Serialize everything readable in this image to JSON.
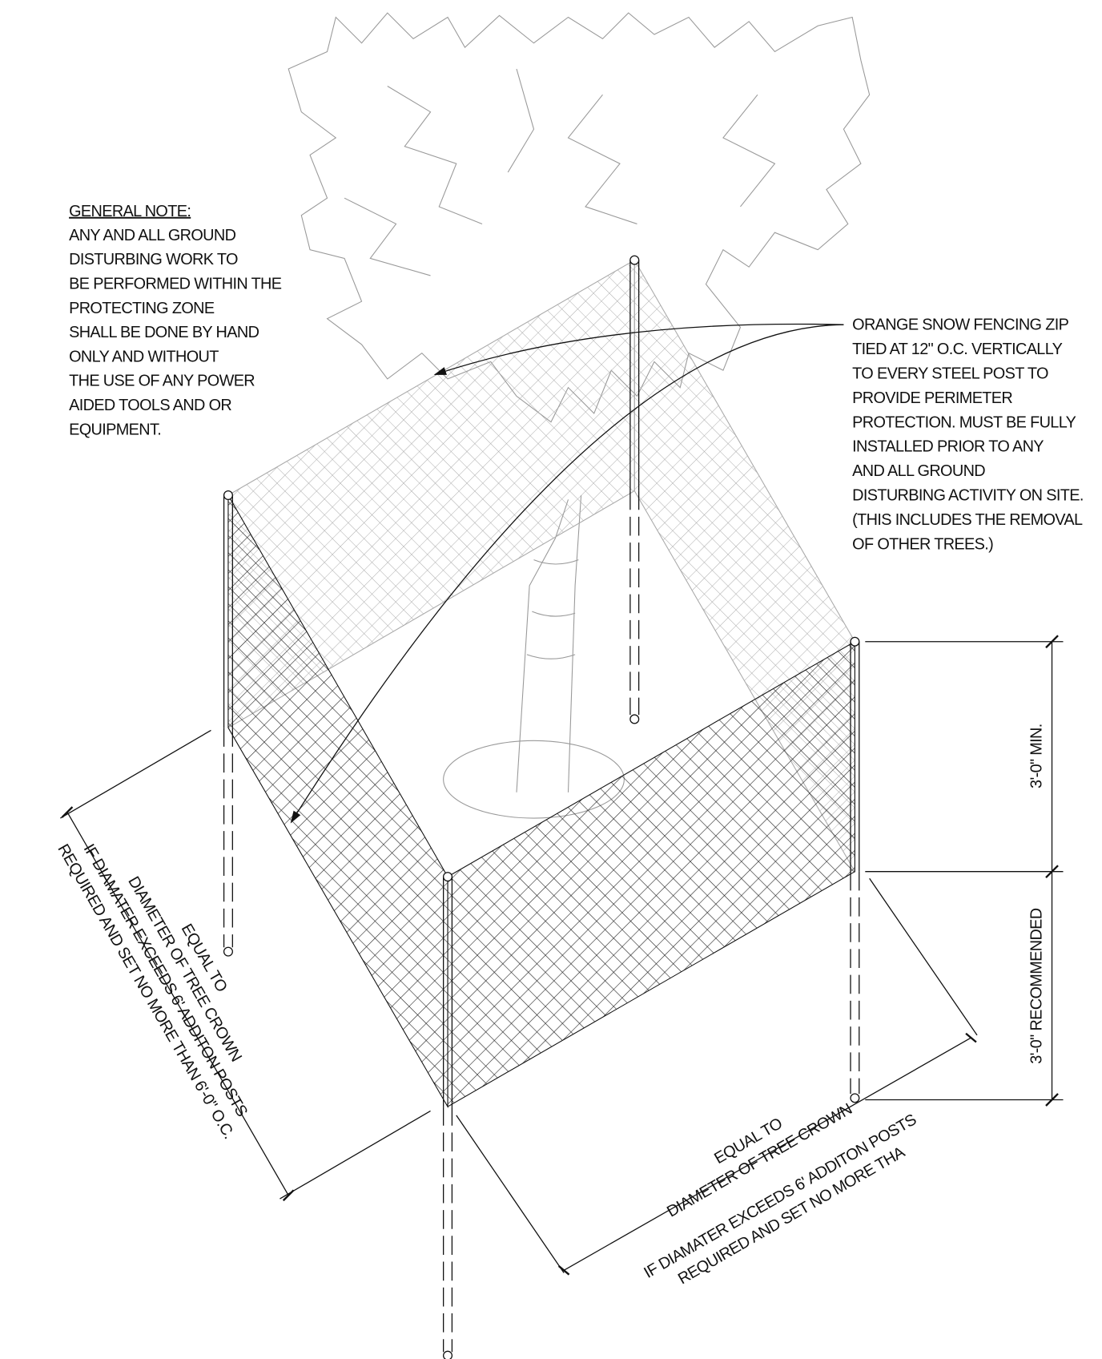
{
  "general_note": {
    "heading": "GENERAL NOTE:",
    "lines": [
      "ANY AND ALL GROUND",
      "DISTURBING WORK TO",
      "BE PERFORMED WITHIN THE",
      "PROTECTING ZONE",
      "SHALL BE DONE BY HAND",
      "ONLY AND WITHOUT",
      "THE USE OF ANY POWER",
      "AIDED TOOLS AND OR",
      "EQUIPMENT."
    ]
  },
  "callout": {
    "lines": [
      "ORANGE SNOW FENCING ZIP",
      "TIED AT 12\" O.C. VERTICALLY",
      "TO EVERY STEEL POST TO",
      "PROVIDE PERIMETER",
      "PROTECTION.  MUST BE FULLY",
      "INSTALLED PRIOR TO ANY",
      "AND ALL GROUND",
      "DISTURBING ACTIVITY ON SITE.",
      "(THIS INCLUDES THE REMOVAL",
      "OF OTHER TREES.)"
    ]
  },
  "dimensions": {
    "height_min": "3'-0\" MIN.",
    "depth_recommended": "3'-0\" RECOMMENDED",
    "left_side": [
      "EQUAL TO",
      "DIAMETER OF TREE CROWN",
      "IF DIAMATER EXCEEDS 6' ADDITON POSTS",
      "REQUIRED AND SET NO MORE THAN 6'-0\" O.C."
    ],
    "front_side": [
      "EQUAL TO",
      "DIAMETER OF TREE CROWN",
      "IF DIAMATER EXCEEDS 6' ADDITON POSTS",
      "REQUIRED AND SET NO MORE THA"
    ]
  }
}
